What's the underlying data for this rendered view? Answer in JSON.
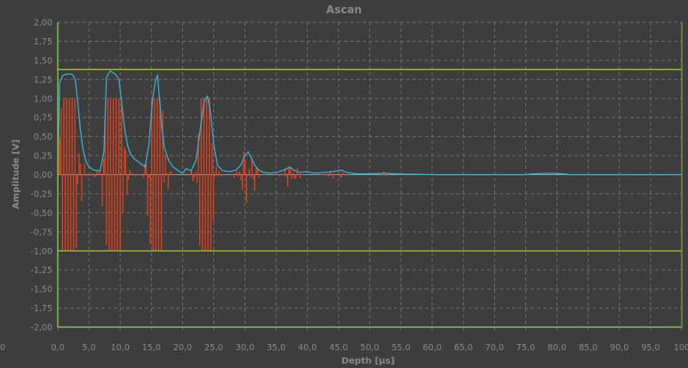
{
  "chart_data": {
    "type": "line",
    "title": "Ascan",
    "xlabel": "Depth [µs]",
    "ylabel": "Amplitude [V]",
    "xlim": [
      0,
      100
    ],
    "ylim": [
      -2.0,
      2.0
    ],
    "x_ticks": [
      "0,0",
      "5,0",
      "10,0",
      "15,0",
      "20,0",
      "25,0",
      "30,0",
      "35,0",
      "40,0",
      "45,0",
      "50,0",
      "55,0",
      "60,0",
      "65,0",
      "70,0",
      "75,0",
      "80,0",
      "85,0",
      "90,0",
      "95,0",
      "100"
    ],
    "y_ticks": [
      "2,00",
      "1,75",
      "1,50",
      "1,25",
      "1,00",
      "0,75",
      "0,50",
      "0,25",
      "0,00",
      "-0,25",
      "-0,50",
      "-0,75",
      "-1,00",
      "-1,25",
      "-1,50",
      "-1,75",
      "-2,00"
    ],
    "x_axis_start_label": "0",
    "grid": true,
    "colors": {
      "background": "#3d3d3d",
      "grid": "#6a6a6a",
      "axis": "#7fc241",
      "gate": "#a8c030",
      "envelope": "#3ab4d6",
      "signal": "#e8401c"
    },
    "gates": [
      {
        "name": "upper",
        "value": 1.38
      },
      {
        "name": "lower",
        "value": -1.0
      }
    ],
    "series": [
      {
        "role": "envelope",
        "points": [
          [
            0,
            0.02
          ],
          [
            0.3,
            1.2
          ],
          [
            0.8,
            1.3
          ],
          [
            1.5,
            1.32
          ],
          [
            2.3,
            1.32
          ],
          [
            2.8,
            1.25
          ],
          [
            3.2,
            0.95
          ],
          [
            3.6,
            0.6
          ],
          [
            4.0,
            0.35
          ],
          [
            4.5,
            0.18
          ],
          [
            5.0,
            0.1
          ],
          [
            5.8,
            0.06
          ],
          [
            6.8,
            0.05
          ],
          [
            7.4,
            0.3
          ],
          [
            7.8,
            1.28
          ],
          [
            8.4,
            1.36
          ],
          [
            9.2,
            1.32
          ],
          [
            9.8,
            1.25
          ],
          [
            10.3,
            0.9
          ],
          [
            10.8,
            0.55
          ],
          [
            11.3,
            0.35
          ],
          [
            11.8,
            0.25
          ],
          [
            12.4,
            0.2
          ],
          [
            13.2,
            0.15
          ],
          [
            14.0,
            0.1
          ],
          [
            14.6,
            0.4
          ],
          [
            15.2,
            1.0
          ],
          [
            15.7,
            1.25
          ],
          [
            16.0,
            1.3
          ],
          [
            16.3,
            1.0
          ],
          [
            16.7,
            0.6
          ],
          [
            17.1,
            0.35
          ],
          [
            17.8,
            0.18
          ],
          [
            18.5,
            0.1
          ],
          [
            19.5,
            0.04
          ],
          [
            20.0,
            0.02
          ],
          [
            20.6,
            0.08
          ],
          [
            21.4,
            0.05
          ],
          [
            22.2,
            0.2
          ],
          [
            23.0,
            0.7
          ],
          [
            23.5,
            0.98
          ],
          [
            24.0,
            1.03
          ],
          [
            24.5,
            0.8
          ],
          [
            25.0,
            0.4
          ],
          [
            25.6,
            0.12
          ],
          [
            26.5,
            0.05
          ],
          [
            27.5,
            0.04
          ],
          [
            28.5,
            0.06
          ],
          [
            29.3,
            0.12
          ],
          [
            30.0,
            0.25
          ],
          [
            30.5,
            0.3
          ],
          [
            31.0,
            0.22
          ],
          [
            31.6,
            0.12
          ],
          [
            32.2,
            0.06
          ],
          [
            33.0,
            0.03
          ],
          [
            34.0,
            0.02
          ],
          [
            35.0,
            0.03
          ],
          [
            36.3,
            0.06
          ],
          [
            37.2,
            0.1
          ],
          [
            37.8,
            0.06
          ],
          [
            38.8,
            0.03
          ],
          [
            40.0,
            0.04
          ],
          [
            41.0,
            0.02
          ],
          [
            43.0,
            0.03
          ],
          [
            44.0,
            0.04
          ],
          [
            45.5,
            0.06
          ],
          [
            46.2,
            0.03
          ],
          [
            48.0,
            0.01
          ],
          [
            50.0,
            0.01
          ],
          [
            52.5,
            0.02
          ],
          [
            54.0,
            0.01
          ],
          [
            60.0,
            0.0
          ],
          [
            75.0,
            0.0
          ],
          [
            76.0,
            0.01
          ],
          [
            79.0,
            0.02
          ],
          [
            81.0,
            0.01
          ],
          [
            82.0,
            0.0
          ],
          [
            100.0,
            0.0
          ]
        ]
      },
      {
        "role": "signal",
        "peaks": [
          {
            "center": 1.8,
            "width": 1.6,
            "amp": 1.0,
            "spread": 1.0
          },
          {
            "center": 9.0,
            "width": 1.6,
            "amp": 1.0,
            "spread": 1.0
          },
          {
            "center": 15.8,
            "width": 1.2,
            "amp": 1.0,
            "spread": 0.9
          },
          {
            "center": 23.7,
            "width": 1.2,
            "amp": 1.0,
            "spread": 0.9
          },
          {
            "center": 30.4,
            "width": 1.3,
            "amp": 0.25,
            "spread": 0.9
          },
          {
            "center": 37.3,
            "width": 1.3,
            "amp": 0.1,
            "spread": 0.9
          },
          {
            "center": 44.5,
            "width": 1.5,
            "amp": 0.04,
            "spread": 1.0
          },
          {
            "center": 52.3,
            "width": 0.6,
            "amp": 0.02,
            "spread": 0.6
          }
        ],
        "clip": [
          -1.0,
          1.0
        ],
        "sample_step": 0.22
      }
    ]
  }
}
